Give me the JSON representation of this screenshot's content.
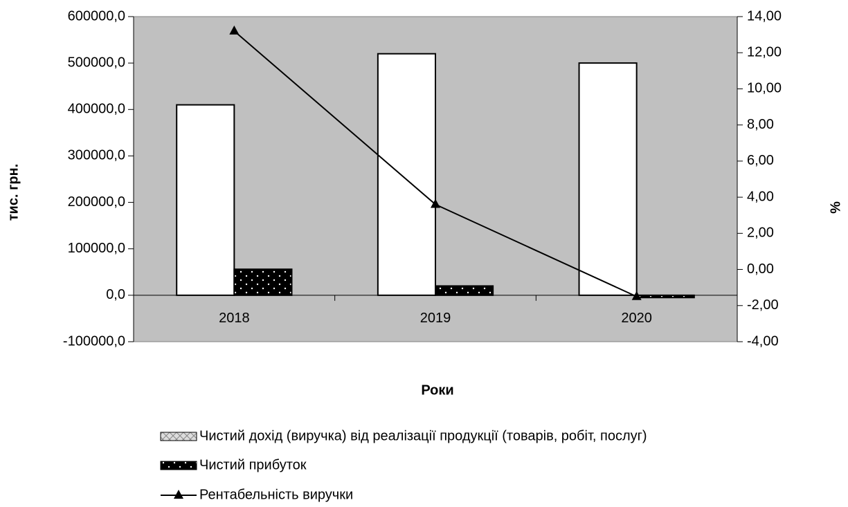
{
  "chart_data": {
    "type": "bar",
    "categories": [
      "2018",
      "2019",
      "2020"
    ],
    "series": [
      {
        "name": "Чистий дохід (виручка) від реалізації продукції (товарів, робіт, послуг)",
        "color": "#ffffff",
        "values": [
          410000,
          520000,
          500000
        ]
      },
      {
        "name": "Чистий прибуток",
        "color": "#000000",
        "values": [
          56000,
          20000,
          -5000
        ]
      },
      {
        "name": "Рентабельність виручки",
        "type": "line",
        "axis": "y2",
        "color": "#000000",
        "values": [
          13.2,
          3.6,
          -1.5
        ]
      }
    ],
    "ylabel": "тис. грн.",
    "y2label": "%",
    "xlabel": "Роки",
    "ylim": [
      -100000,
      600000
    ],
    "yticks": [
      {
        "value": -100000,
        "label": "-100000,0"
      },
      {
        "value": 0,
        "label": "0,0"
      },
      {
        "value": 100000,
        "label": "100000,0"
      },
      {
        "value": 200000,
        "label": "200000,0"
      },
      {
        "value": 300000,
        "label": "300000,0"
      },
      {
        "value": 400000,
        "label": "400000,0"
      },
      {
        "value": 500000,
        "label": "500000,0"
      },
      {
        "value": 600000,
        "label": "600000,0"
      }
    ],
    "y2lim": [
      -4,
      14
    ],
    "y2ticks": [
      {
        "value": -4,
        "label": "-4,00"
      },
      {
        "value": -2,
        "label": "-2,00"
      },
      {
        "value": 0,
        "label": "0,00"
      },
      {
        "value": 2,
        "label": "2,00"
      },
      {
        "value": 4,
        "label": "4,00"
      },
      {
        "value": 6,
        "label": "6,00"
      },
      {
        "value": 8,
        "label": "8,00"
      },
      {
        "value": 10,
        "label": "10,00"
      },
      {
        "value": 12,
        "label": "12,00"
      },
      {
        "value": 14,
        "label": "14,00"
      }
    ],
    "plot_background": "#c0c0c0",
    "grid": false,
    "legend": "bottom"
  }
}
